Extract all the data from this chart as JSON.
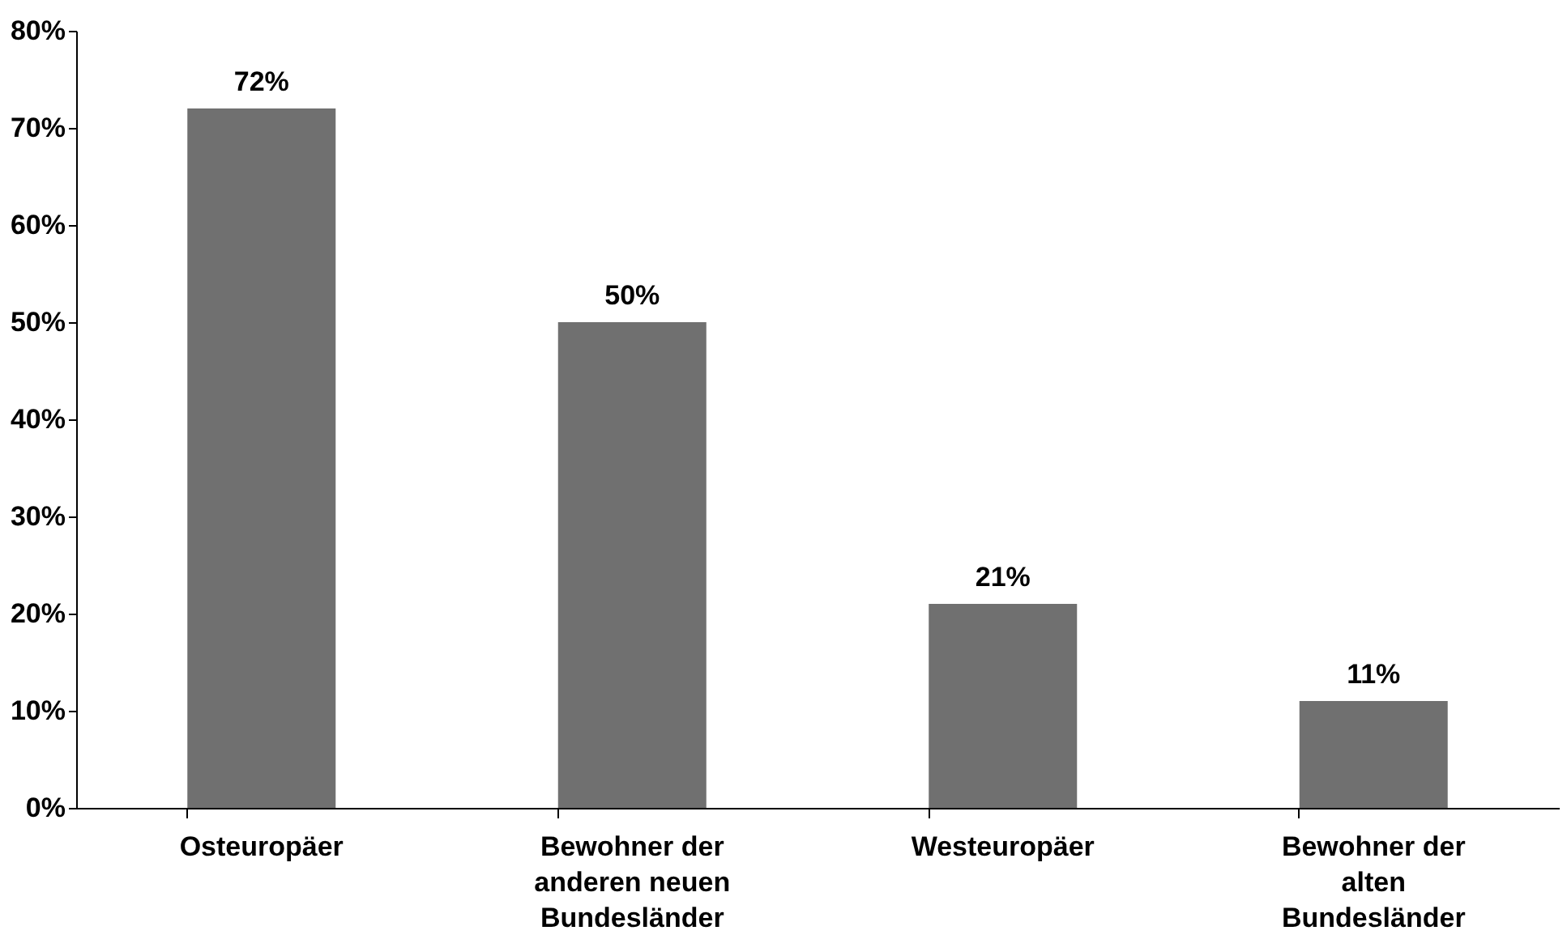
{
  "chart_data": {
    "type": "bar",
    "categories": [
      "Osteuropäer",
      "Bewohner der anderen neuen Bundesländer",
      "Westeuropäer",
      "Bewohner der alten Bundesländer"
    ],
    "values": [
      72,
      50,
      21,
      11
    ],
    "value_labels": [
      "72%",
      "50%",
      "21%",
      "11%"
    ],
    "color": "#707070",
    "ylim": [
      0,
      80
    ],
    "yticks": [
      {
        "value": 0,
        "label": "0%"
      },
      {
        "value": 10,
        "label": "10%"
      },
      {
        "value": 20,
        "label": "20%"
      },
      {
        "value": 30,
        "label": "30%"
      },
      {
        "value": 40,
        "label": "40%"
      },
      {
        "value": 50,
        "label": "50%"
      },
      {
        "value": 60,
        "label": "60%"
      },
      {
        "value": 70,
        "label": "70%"
      },
      {
        "value": 80,
        "label": "80%"
      }
    ],
    "grid": false
  }
}
